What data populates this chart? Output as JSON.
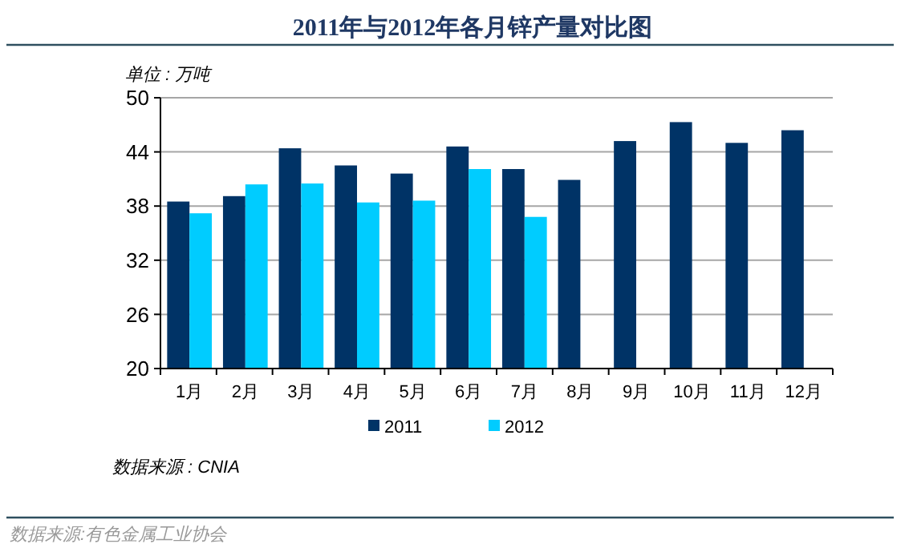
{
  "chart_data": {
    "type": "bar",
    "title": "2011年与2012年各月锌产量对比图",
    "ylabel": "单位 : 万吨",
    "categories": [
      "1月",
      "2月",
      "3月",
      "4月",
      "5月",
      "6月",
      "7月",
      "8月",
      "9月",
      "10月",
      "11月",
      "12月"
    ],
    "series": [
      {
        "name": "2011",
        "color": "#003366",
        "values": [
          38.5,
          39.1,
          44.4,
          42.5,
          41.6,
          44.6,
          42.1,
          40.9,
          45.2,
          47.3,
          45.0,
          46.4
        ]
      },
      {
        "name": "2012",
        "color": "#00ccff",
        "values": [
          37.2,
          40.4,
          40.5,
          38.4,
          38.6,
          42.1,
          36.8,
          null,
          null,
          null,
          null,
          null
        ]
      }
    ],
    "ylim": [
      20,
      50
    ],
    "yticks": [
      20,
      26,
      32,
      38,
      44,
      50
    ],
    "grid": "y",
    "legend": "bottom",
    "annotations": [
      "数据来源 : CNIA",
      "数据来源:有色金属工业协会"
    ]
  }
}
